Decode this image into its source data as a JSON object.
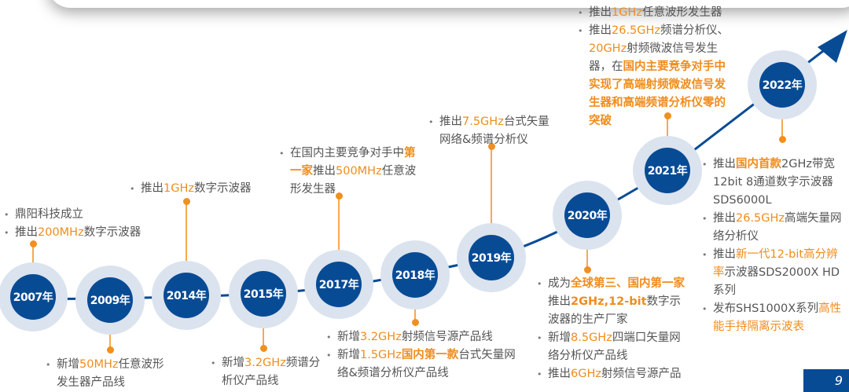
{
  "colors": {
    "node": "#084b95",
    "halo": "#dbe3ee",
    "highlight": "#f08c1c",
    "text": "#555555"
  },
  "page_number": "9",
  "milestones": [
    {
      "year": "2007年",
      "items": [
        [
          {
            "t": "鼎阳科技成立"
          }
        ],
        [
          {
            "t": "推出"
          },
          {
            "t": "200MHz",
            "hl": 1
          },
          {
            "t": "数字示波器"
          }
        ]
      ]
    },
    {
      "year": "2009年",
      "items": [
        [
          {
            "t": "新增"
          },
          {
            "t": "50MHz",
            "hl": 1
          },
          {
            "t": "任意波形发生器产品线"
          }
        ]
      ]
    },
    {
      "year": "2014年",
      "items": [
        [
          {
            "t": "推出"
          },
          {
            "t": "1GHz",
            "hl": 1
          },
          {
            "t": "数字示波器"
          }
        ]
      ]
    },
    {
      "year": "2015年",
      "items": [
        [
          {
            "t": "新增"
          },
          {
            "t": "3.2GHz",
            "hl": 1
          },
          {
            "t": "频谱分析仪产品线"
          }
        ]
      ]
    },
    {
      "year": "2017年",
      "items": [
        [
          {
            "t": "在国内主要竞争对手中"
          },
          {
            "t": "第一家",
            "hl": 1,
            "b": 1
          },
          {
            "t": "推出"
          },
          {
            "t": "500MHz",
            "hl": 1
          },
          {
            "t": "任意波形发生器"
          }
        ]
      ]
    },
    {
      "year": "2018年",
      "items": [
        [
          {
            "t": "新增"
          },
          {
            "t": "3.2GHz",
            "hl": 1
          },
          {
            "t": "射频信号源产品线"
          }
        ],
        [
          {
            "t": "新增"
          },
          {
            "t": "1.5GHz",
            "hl": 1
          },
          {
            "t": "国内第一款",
            "hl": 1,
            "b": 1
          },
          {
            "t": "台式矢量网络&频谱分析仪产品线"
          }
        ]
      ]
    },
    {
      "year": "2019年",
      "items": [
        [
          {
            "t": "推出"
          },
          {
            "t": "7.5GHz",
            "hl": 1
          },
          {
            "t": "台式矢量网络&频谱分析仪"
          }
        ]
      ]
    },
    {
      "year": "2020年",
      "items": [
        [
          {
            "t": "成为"
          },
          {
            "t": "全球第三、国内第一家",
            "hl": 1,
            "b": 1
          },
          {
            "t": "推出"
          },
          {
            "t": "2GHz,12-bit",
            "hl": 1,
            "b": 1
          },
          {
            "t": "数字示波器的生产厂家"
          }
        ],
        [
          {
            "t": "新增"
          },
          {
            "t": "8.5GHz",
            "hl": 1
          },
          {
            "t": "四端口矢量网络分析仪产品线"
          }
        ],
        [
          {
            "t": "推出"
          },
          {
            "t": "6GHz",
            "hl": 1
          },
          {
            "t": "射频信号源产品"
          }
        ]
      ]
    },
    {
      "year": "2021年",
      "items": [
        [
          {
            "t": "推出"
          },
          {
            "t": "1GHz",
            "hl": 1
          },
          {
            "t": "任意波形发生器"
          }
        ],
        [
          {
            "t": "推出"
          },
          {
            "t": "26.5GHz",
            "hl": 1
          },
          {
            "t": "频谱分析仪、"
          },
          {
            "t": "20GHz",
            "hl": 1
          },
          {
            "t": "射频微波信号发生器，在"
          },
          {
            "t": "国内主要竞争对手中实现了高端射频微波信号发生器和高端频谱分析仪零的突破",
            "hl": 1,
            "b": 1
          }
        ]
      ]
    },
    {
      "year": "2022年",
      "items": [
        [
          {
            "t": "推出"
          },
          {
            "t": "国内首款",
            "hl": 1,
            "b": 1
          },
          {
            "t": "2GHz带宽12bit 8通道数字示波器 SDS6000L"
          }
        ],
        [
          {
            "t": "推出"
          },
          {
            "t": "26.5GHz",
            "hl": 1
          },
          {
            "t": "高端矢量网络分析仪"
          }
        ],
        [
          {
            "t": "推出"
          },
          {
            "t": "新一代12-bit高分辨率",
            "hl": 1
          },
          {
            "t": "示波器SDS2000X HD 系列"
          }
        ],
        [
          {
            "t": "发布SHS1000X系列"
          },
          {
            "t": "高性能手持隔离示波表",
            "hl": 1
          }
        ]
      ]
    }
  ]
}
